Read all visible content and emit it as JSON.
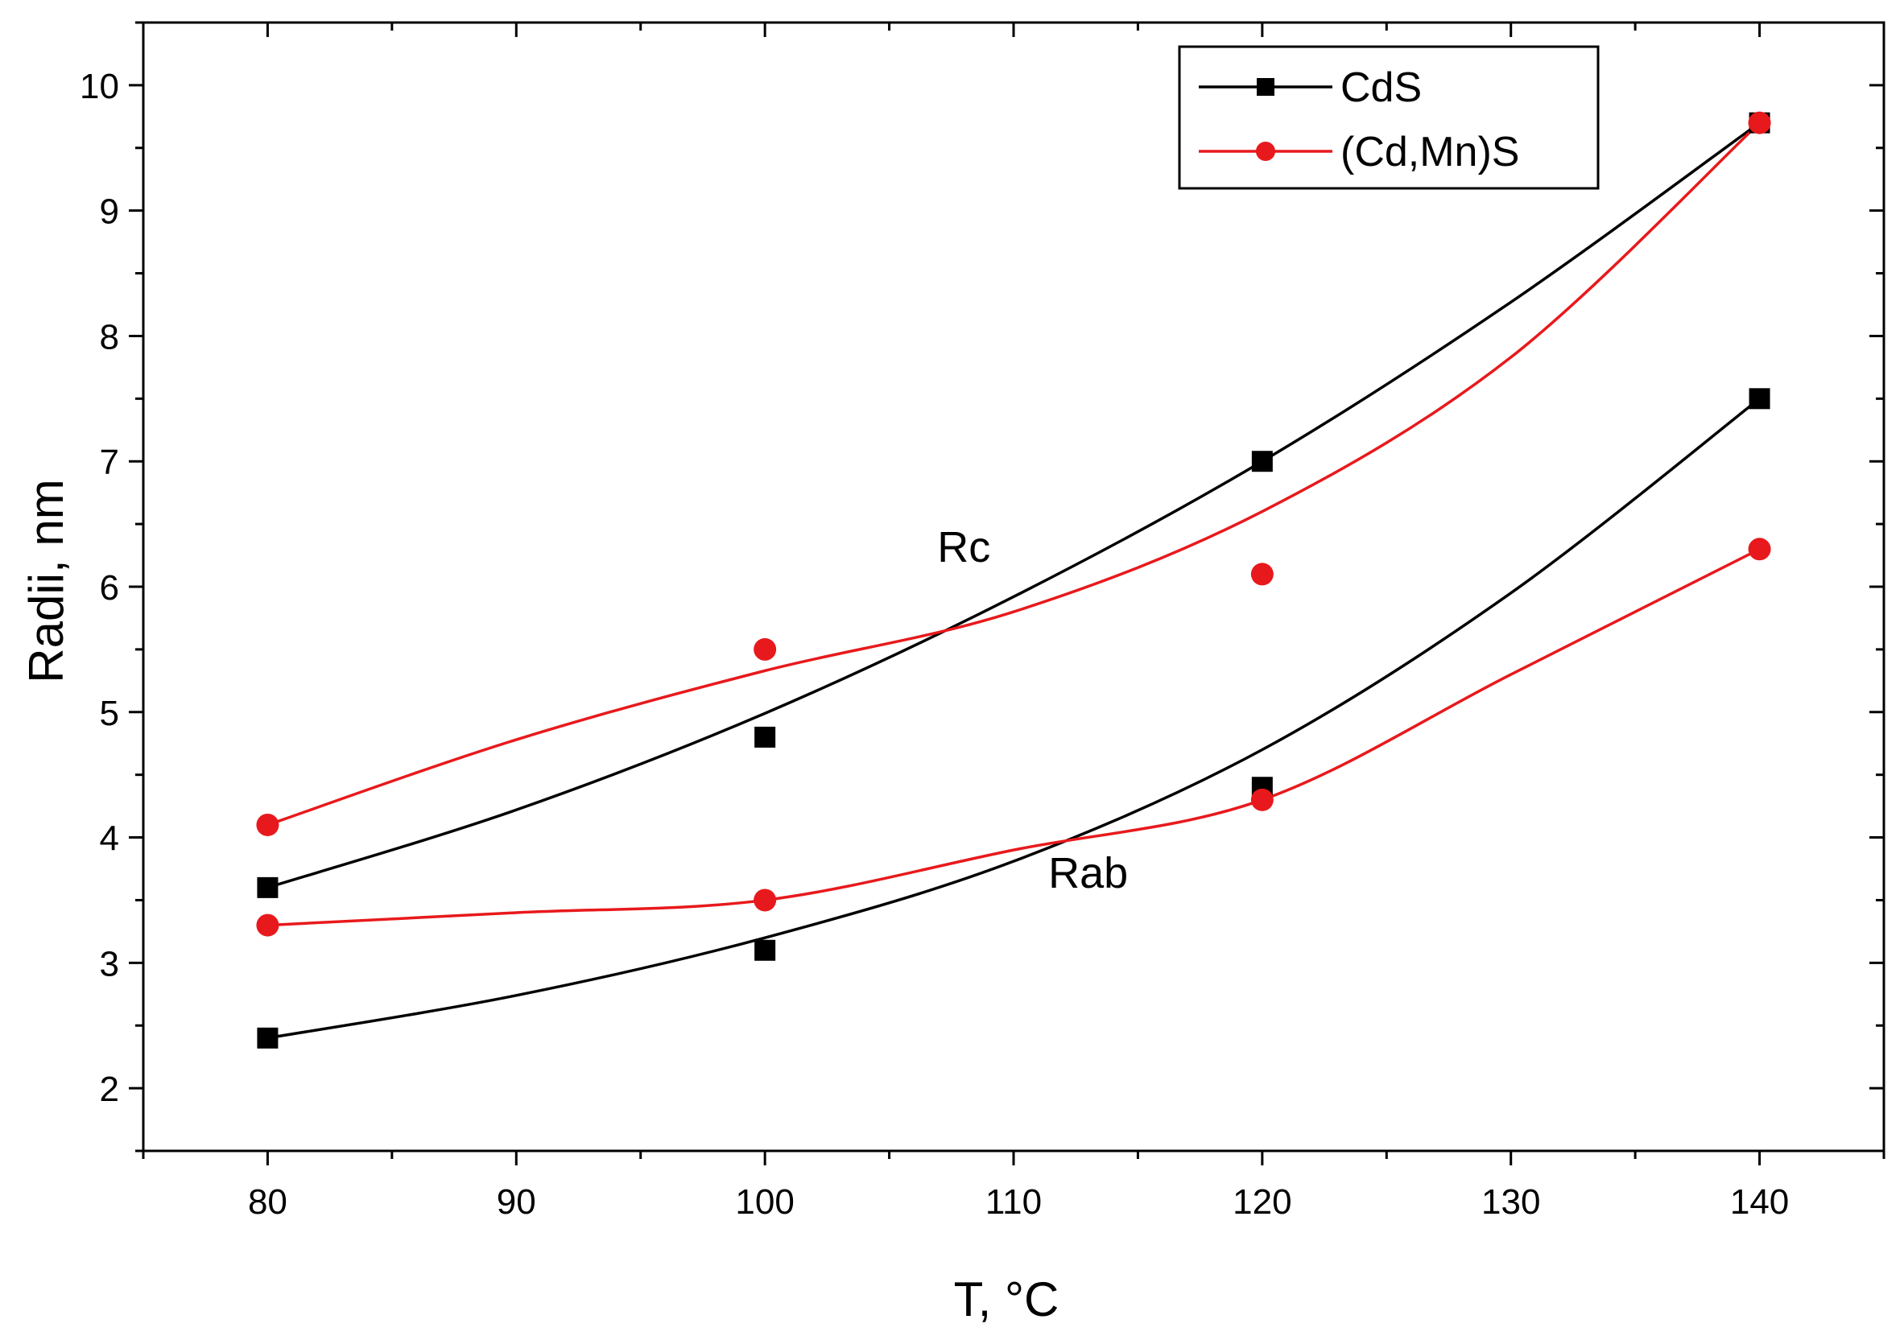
{
  "chart_data": {
    "type": "scatter",
    "xlabel": "T, °C",
    "ylabel": "Radii, nm",
    "xlim": [
      75,
      145
    ],
    "ylim": [
      1.5,
      10.5
    ],
    "xticks": [
      "80",
      "90",
      "100",
      "110",
      "120",
      "130",
      "140"
    ],
    "yticks": [
      "2",
      "3",
      "4",
      "5",
      "6",
      "7",
      "8",
      "9",
      "10"
    ],
    "grid": false,
    "legend_position": "top-right",
    "x": [
      80,
      100,
      120,
      140
    ],
    "series": [
      {
        "name": "CdS",
        "group": "Rc",
        "color": "#000000",
        "marker": "square",
        "values": [
          3.6,
          4.8,
          7.0,
          9.7
        ]
      },
      {
        "name": "CdS",
        "group": "Rab",
        "color": "#000000",
        "marker": "square",
        "values": [
          2.4,
          3.1,
          4.4,
          7.5
        ]
      },
      {
        "name": "(Cd,Mn)S",
        "group": "Rc",
        "color": "#e8191c",
        "marker": "circle",
        "values": [
          4.1,
          5.5,
          6.1,
          9.7
        ]
      },
      {
        "name": "(Cd,Mn)S",
        "group": "Rab",
        "color": "#e8191c",
        "marker": "circle",
        "values": [
          3.3,
          3.5,
          4.3,
          6.3
        ]
      }
    ],
    "fit_curves": [
      {
        "name": "CdS Rc fit",
        "color": "#000000",
        "x": [
          80,
          90,
          100,
          110,
          120,
          130,
          140
        ],
        "y": [
          3.6,
          4.22,
          4.99,
          5.92,
          7.0,
          8.27,
          9.7
        ]
      },
      {
        "name": "CdS Rab fit",
        "color": "#000000",
        "x": [
          80,
          90,
          100,
          110,
          120,
          130,
          140
        ],
        "y": [
          2.4,
          2.74,
          3.2,
          3.81,
          4.7,
          5.95,
          7.5
        ]
      },
      {
        "name": "(Cd,Mn)S Rc fit",
        "color": "#e8191c",
        "x": [
          80,
          90,
          100,
          110,
          120,
          130,
          140
        ],
        "y": [
          4.1,
          4.78,
          5.33,
          5.8,
          6.6,
          7.83,
          9.7
        ]
      },
      {
        "name": "(Cd,Mn)S Rab fit",
        "color": "#e8191c",
        "x": [
          80,
          90,
          100,
          110,
          120,
          130,
          140
        ],
        "y": [
          3.3,
          3.4,
          3.5,
          3.9,
          4.3,
          5.3,
          6.3
        ]
      }
    ],
    "legend": [
      {
        "label": "CdS",
        "color": "#000000",
        "marker": "square"
      },
      {
        "label": "(Cd,Mn)S",
        "color": "#e8191c",
        "marker": "circle"
      }
    ],
    "annotations": [
      {
        "text": "Rc",
        "x": 108,
        "y": 6.2
      },
      {
        "text": "Rab",
        "x": 113,
        "y": 3.6
      }
    ]
  }
}
